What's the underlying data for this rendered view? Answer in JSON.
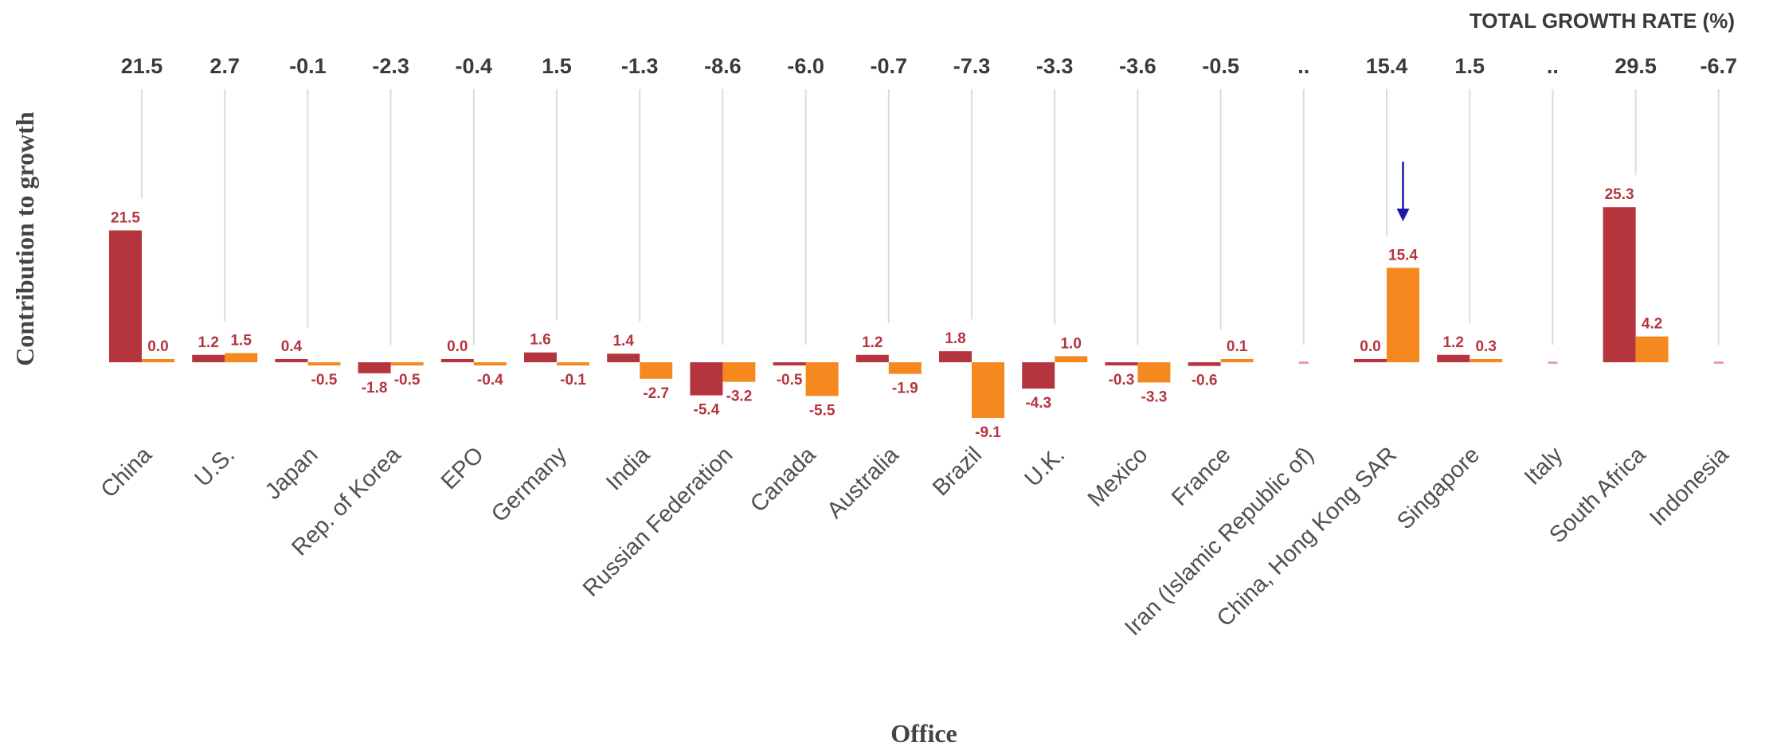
{
  "chart_data": {
    "type": "bar",
    "title": "",
    "xlabel": "Office",
    "ylabel": "Contribution to growth",
    "top_header": "TOTAL GROWTH RATE (%)",
    "categories": [
      "China",
      "U.S.",
      "Japan",
      "Rep. of Korea",
      "EPO",
      "Germany",
      "India",
      "Russian Federation",
      "Canada",
      "Australia",
      "Brazil",
      "U.K.",
      "Mexico",
      "France",
      "Iran (Islamic Republic of)",
      "China, Hong Kong SAR",
      "Singapore",
      "Italy",
      "South Africa",
      "Indonesia"
    ],
    "total_growth_labels": [
      "21.5",
      "2.7",
      "-0.1",
      "-2.3",
      "-0.4",
      "1.5",
      "-1.3",
      "-8.6",
      "-6.0",
      "-0.7",
      "-7.3",
      "-3.3",
      "-3.6",
      "-0.5",
      "..",
      "15.4",
      "1.5",
      "..",
      "29.5",
      "-6.7"
    ],
    "series": [
      {
        "color": "#b5353f",
        "values": [
          21.5,
          1.2,
          0.4,
          -1.8,
          0.0,
          1.6,
          1.4,
          -5.4,
          -0.5,
          1.2,
          1.8,
          -4.3,
          -0.3,
          -0.6,
          null,
          0.0,
          1.2,
          null,
          25.3,
          null
        ],
        "labels": [
          "21.5",
          "1.2",
          "0.4",
          "-1.8",
          "0.0",
          "1.6",
          "1.4",
          "-5.4",
          "-0.5",
          "1.2",
          "1.8",
          "-4.3",
          "-0.3",
          "-0.6",
          "",
          "0.0",
          "1.2",
          "",
          "25.3",
          ""
        ]
      },
      {
        "color": "#f5891f",
        "values": [
          0.0,
          1.5,
          -0.5,
          -0.5,
          -0.4,
          -0.1,
          -2.7,
          -3.2,
          -5.5,
          -1.9,
          -9.1,
          1.0,
          -3.3,
          0.1,
          null,
          15.4,
          0.3,
          null,
          4.2,
          null
        ],
        "labels": [
          "0.0",
          "1.5",
          "-0.5",
          "-0.5",
          "-0.4",
          "-0.1",
          "-2.7",
          "-3.2",
          "-5.5",
          "-1.9",
          "-9.1",
          "1.0",
          "-3.3",
          "0.1",
          "",
          "15.4",
          "0.3",
          "",
          "4.2",
          ""
        ]
      }
    ],
    "annotation": {
      "type": "arrow",
      "category": "China, Hong Kong SAR",
      "series": 1,
      "color": "#1a1aa6"
    },
    "grid": false,
    "legend": "none"
  }
}
